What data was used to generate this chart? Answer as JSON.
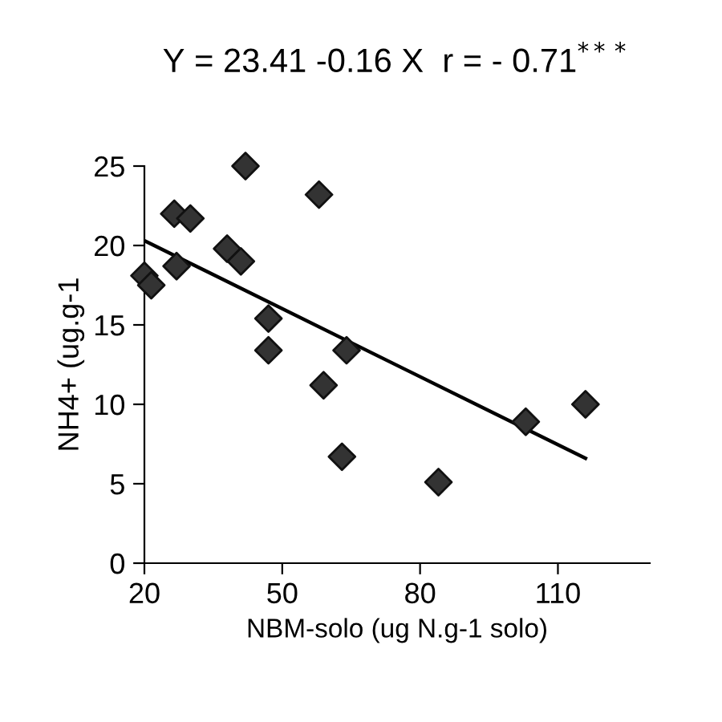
{
  "chart_data": {
    "type": "scatter",
    "title": "Y = 23.41 -0.16 X  r = - 0.71$^{***}$",
    "xlabel": "NBM-solo (ug N.g-1 solo)",
    "ylabel": "NH4+ (ug.g-1",
    "grid": false,
    "legend": false,
    "xlim": [
      20,
      130
    ],
    "xticks": [
      20,
      50,
      80,
      110
    ],
    "ylim": [
      0,
      25
    ],
    "yticks": [
      0,
      5,
      10,
      15,
      20,
      25
    ],
    "series": [
      {
        "marker": "diamond",
        "color": "#333333",
        "x": [
          20,
          21.5,
          26.5,
          30,
          27,
          38,
          41,
          42,
          47,
          47,
          58,
          59,
          64,
          63,
          84,
          103,
          116
        ],
        "values": [
          18.1,
          17.5,
          22.0,
          21.7,
          18.7,
          19.8,
          19.0,
          25.0,
          15.4,
          13.4,
          23.2,
          11.2,
          13.4,
          6.7,
          5.1,
          8.9,
          10.0
        ]
      },
      {
        "type": "line",
        "marker": "none",
        "color": "#000000",
        "x": [
          20,
          116
        ],
        "values": [
          20.3,
          6.6
        ]
      }
    ]
  }
}
